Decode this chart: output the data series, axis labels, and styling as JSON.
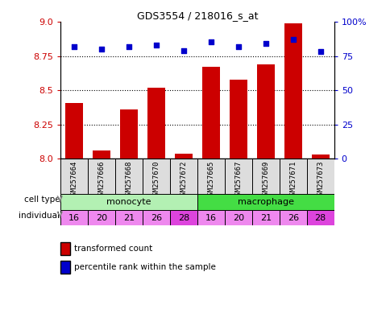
{
  "title": "GDS3554 / 218016_s_at",
  "samples": [
    "GSM257664",
    "GSM257666",
    "GSM257668",
    "GSM257670",
    "GSM257672",
    "GSM257665",
    "GSM257667",
    "GSM257669",
    "GSM257671",
    "GSM257673"
  ],
  "transformed_count": [
    8.41,
    8.06,
    8.36,
    8.52,
    8.04,
    8.67,
    8.58,
    8.69,
    8.99,
    8.03
  ],
  "percentile_rank": [
    82,
    80,
    82,
    83,
    79,
    85,
    82,
    84,
    87,
    78
  ],
  "cell_types": [
    "monocyte",
    "monocyte",
    "monocyte",
    "monocyte",
    "monocyte",
    "macrophage",
    "macrophage",
    "macrophage",
    "macrophage",
    "macrophage"
  ],
  "individuals": [
    "16",
    "20",
    "21",
    "26",
    "28",
    "16",
    "20",
    "21",
    "26",
    "28"
  ],
  "ylim_left": [
    8.0,
    9.0
  ],
  "ylim_right": [
    0,
    100
  ],
  "yticks_left": [
    8.0,
    8.25,
    8.5,
    8.75,
    9.0
  ],
  "yticks_right": [
    0,
    25,
    50,
    75,
    100
  ],
  "bar_color": "#cc0000",
  "dot_color": "#0000cc",
  "monocyte_color": "#b3f0b3",
  "macrophage_color": "#44dd44",
  "individual_color_light": "#ee88ee",
  "individual_color_dark": "#dd44dd",
  "xlabel_rotation": 90,
  "legend_labels": [
    "transformed count",
    "percentile rank within the sample"
  ],
  "background_color": "#ffffff",
  "grid_yticks": [
    8.25,
    8.5,
    8.75
  ]
}
